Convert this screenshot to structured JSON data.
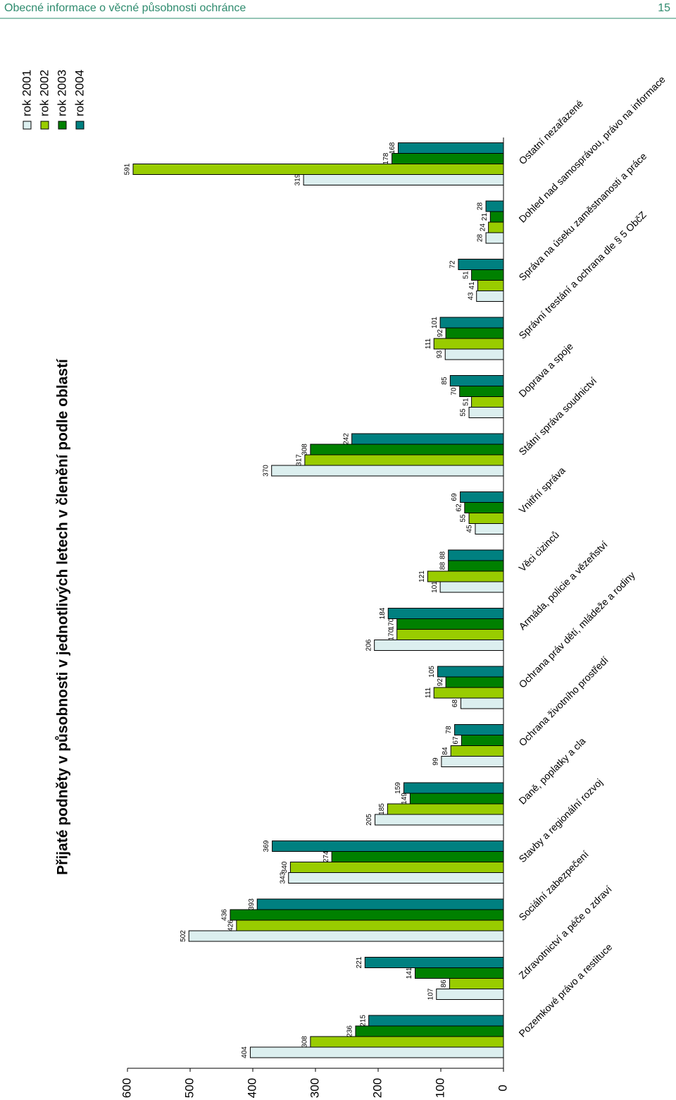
{
  "header": {
    "title": "Obecné informace o věcné působnosti ochránce",
    "page": "15"
  },
  "chart_data": {
    "type": "bar",
    "orientation": "horizontal",
    "title": "Přijaté podněty v působnosti v jednotlivých letech v členění podle oblastí",
    "categories": [
      "Pozemkové právo a restituce",
      "Zdravotnictví a péče o zdraví",
      "Sociální zabezpečení",
      "Stavby a regionální rozvoj",
      "Daně, poplatky a cla",
      "Ochrana životního prostředí",
      "Ochrana práv dětí, mládeže a rodiny",
      "Armáda, policie a vězeňství",
      "Věci cizinců",
      "Vnitřní správa",
      "Státní správa soudnictví",
      "Doprava a spoje",
      "Správní trestání a ochrana dle § 5 ObčZ",
      "Správa na úseku zaměstnanosti a práce",
      "Dohled nad samosprávou, právo na informace",
      "Ostatní nezařazené"
    ],
    "series": [
      {
        "name": "rok 2001",
        "color": "#dcefef",
        "values": [
          404,
          107,
          502,
          343,
          205,
          99,
          68,
          206,
          101,
          45,
          370,
          55,
          93,
          43,
          28,
          319
        ]
      },
      {
        "name": "rok 2002",
        "color": "#99cc00",
        "values": [
          308,
          86,
          426,
          340,
          185,
          84,
          111,
          170,
          121,
          55,
          317,
          51,
          111,
          41,
          24,
          591
        ]
      },
      {
        "name": "rok 2003",
        "color": "#008000",
        "values": [
          236,
          141,
          436,
          274,
          149,
          67,
          92,
          170,
          88,
          62,
          308,
          70,
          92,
          51,
          21,
          178
        ]
      },
      {
        "name": "rok 2004",
        "color": "#008080",
        "values": [
          215,
          221,
          393,
          369,
          159,
          78,
          105,
          184,
          88,
          69,
          242,
          85,
          101,
          72,
          28,
          168
        ]
      }
    ],
    "ylim": [
      0,
      600
    ],
    "yticks": [
      0,
      100,
      200,
      300,
      400,
      500,
      600
    ]
  }
}
